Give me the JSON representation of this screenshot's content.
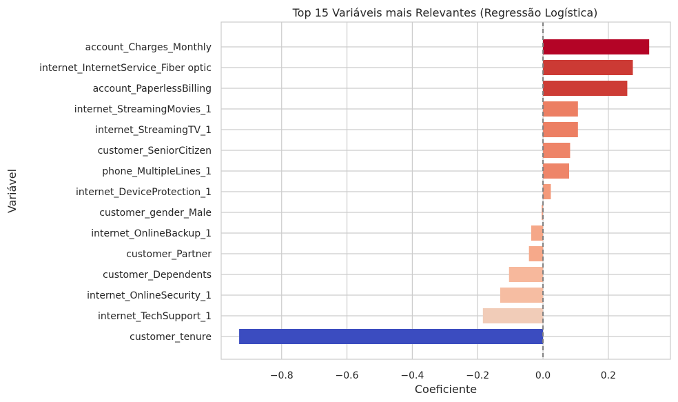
{
  "chart_data": {
    "type": "bar",
    "orientation": "horizontal",
    "title": "Top 15 Variáveis mais Relevantes (Regressão Logística)",
    "xlabel": "Coeficiente",
    "ylabel": "Variável",
    "xlim": [
      -0.985,
      0.39
    ],
    "xticks": [
      -0.8,
      -0.6,
      -0.4,
      -0.2,
      0.0,
      0.2
    ],
    "xtick_labels": [
      "−0.8",
      "−0.6",
      "−0.4",
      "−0.2",
      "0.0",
      "0.2"
    ],
    "grid": true,
    "reference_line": {
      "x": 0.0,
      "style": "dashed",
      "color": "#808080"
    },
    "categories": [
      "account_Charges_Monthly",
      "internet_InternetService_Fiber optic",
      "account_PaperlessBilling",
      "internet_StreamingMovies_1",
      "internet_StreamingTV_1",
      "customer_SeniorCitizen",
      "phone_MultipleLines_1",
      "internet_DeviceProtection_1",
      "customer_gender_Male",
      "internet_OnlineBackup_1",
      "customer_Partner",
      "customer_Dependents",
      "internet_OnlineSecurity_1",
      "internet_TechSupport_1",
      "customer_tenure"
    ],
    "values": [
      0.325,
      0.275,
      0.258,
      0.107,
      0.107,
      0.083,
      0.08,
      0.024,
      -0.004,
      -0.036,
      -0.043,
      -0.104,
      -0.131,
      -0.184,
      -0.93
    ],
    "colors": [
      "#b40426",
      "#cc3a34",
      "#cd3c35",
      "#ec7f63",
      "#ec7f63",
      "#ee8468",
      "#ee8569",
      "#f39a7b",
      "#f4a385",
      "#f5a788",
      "#f6a98a",
      "#f7b89c",
      "#f6bda2",
      "#f1ccb8",
      "#3b4cc0"
    ]
  }
}
